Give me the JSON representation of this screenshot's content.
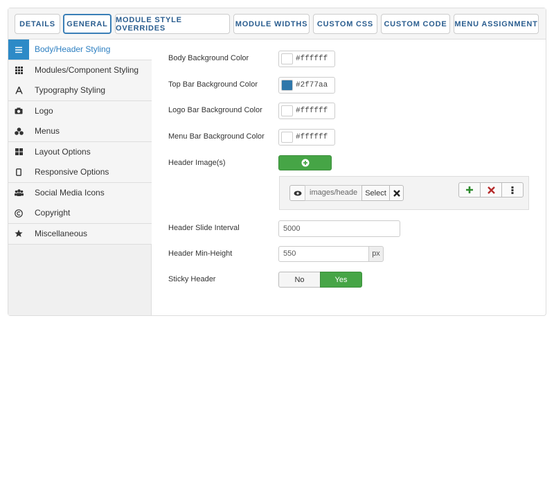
{
  "tabs": [
    "DETAILS",
    "GENERAL",
    "MODULE STYLE OVERRIDES",
    "MODULE WIDTHS",
    "CUSTOM CSS",
    "CUSTOM CODE",
    "MENU ASSIGNMENT"
  ],
  "sidebar": [
    "Body/Header Styling",
    "Modules/Component Styling",
    "Typography Styling",
    "Logo",
    "Menus",
    "Layout Options",
    "Responsive Options",
    "Social Media Icons",
    "Copyright",
    "Miscellaneous"
  ],
  "color_fields": [
    {
      "label": "Body Background Color",
      "value": "#ffffff"
    },
    {
      "label": "Top Bar Background Color",
      "value": "#2f77aa"
    },
    {
      "label": "Logo Bar Background Color",
      "value": "#ffffff"
    },
    {
      "label": "Menu Bar Background Color",
      "value": "#ffffff"
    }
  ],
  "header_images": {
    "label": "Header Image(s)",
    "path": "images/heade",
    "select": "Select"
  },
  "slide_interval": {
    "label": "Header Slide Interval",
    "value": "5000"
  },
  "min_height": {
    "label": "Header Min-Height",
    "value": "550",
    "unit": "px"
  },
  "sticky_header": {
    "label": "Sticky Header",
    "options": [
      "No",
      "Yes"
    ]
  }
}
